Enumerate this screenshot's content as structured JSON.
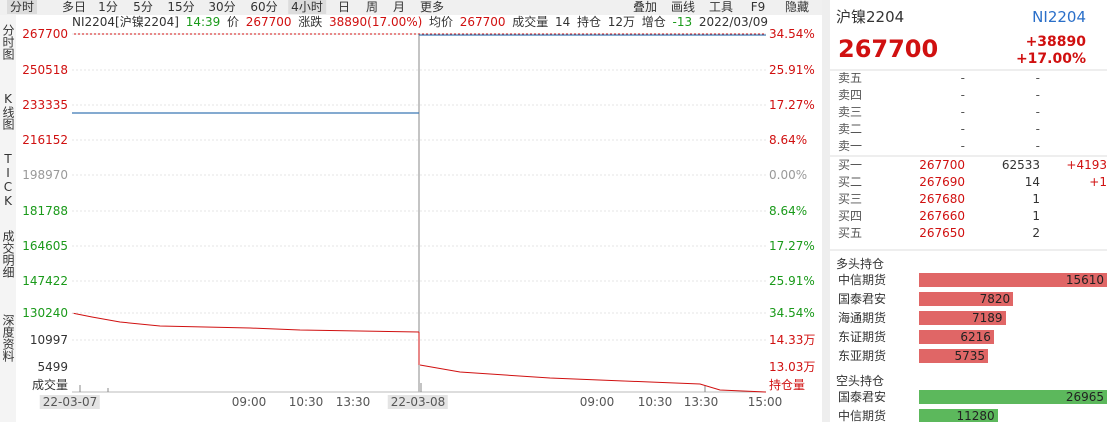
{
  "toolbar": {
    "tabs": [
      "分时",
      "多日",
      "1分",
      "5分",
      "15分",
      "30分",
      "60分",
      "4小时",
      "日",
      "周",
      "月",
      "更多"
    ],
    "tools": [
      "叠加",
      "画线",
      "工具",
      "F9",
      "隐藏"
    ]
  },
  "side_tabs": [
    "分时图",
    "K线图",
    "TICK",
    "成交明细",
    "深度资料"
  ],
  "info": [
    {
      "text": "NI2204[沪镍2204]",
      "color": "#333333"
    },
    {
      "text": "14:39",
      "color": "#1a9a1a"
    },
    {
      "text": "价",
      "color": "#333333"
    },
    {
      "text": "267700",
      "color": "#d01010"
    },
    {
      "text": "涨跌",
      "color": "#333333"
    },
    {
      "text": "38890(17.00%)",
      "color": "#d01010"
    },
    {
      "text": "均价",
      "color": "#333333"
    },
    {
      "text": "267700",
      "color": "#d01010"
    },
    {
      "text": "成交量",
      "color": "#333333"
    },
    {
      "text": "14",
      "color": "#333333"
    },
    {
      "text": "持仓",
      "color": "#333333"
    },
    {
      "text": "12万",
      "color": "#333333"
    },
    {
      "text": "增仓",
      "color": "#333333"
    },
    {
      "text": "-13",
      "color": "#1a9a1a"
    },
    {
      "text": "2022/03/09",
      "color": "#333333"
    }
  ],
  "left_axis": [
    {
      "text": "267700",
      "color": "#d01010"
    },
    {
      "text": "250518",
      "color": "#d01010"
    },
    {
      "text": "233335",
      "color": "#d01010"
    },
    {
      "text": "216152",
      "color": "#d01010"
    },
    {
      "text": "198970",
      "color": "#999999"
    },
    {
      "text": "181788",
      "color": "#1a9a1a"
    },
    {
      "text": "164605",
      "color": "#1a9a1a"
    },
    {
      "text": "147422",
      "color": "#1a9a1a"
    },
    {
      "text": "130240",
      "color": "#1a9a1a"
    },
    {
      "text": "10997",
      "color": "#333333"
    },
    {
      "text": "5499",
      "color": "#333333"
    },
    {
      "text": "成交量",
      "color": "#333333"
    }
  ],
  "right_axis": [
    {
      "text": "34.54%",
      "color": "#d01010"
    },
    {
      "text": "25.91%",
      "color": "#d01010"
    },
    {
      "text": "17.27%",
      "color": "#d01010"
    },
    {
      "text": "8.64%",
      "color": "#d01010"
    },
    {
      "text": "0.00%",
      "color": "#999999"
    },
    {
      "text": "8.64%",
      "color": "#1a9a1a"
    },
    {
      "text": "17.27%",
      "color": "#1a9a1a"
    },
    {
      "text": "25.91%",
      "color": "#1a9a1a"
    },
    {
      "text": "34.54%",
      "color": "#1a9a1a"
    },
    {
      "text": "14.33万",
      "color": "#d01010"
    },
    {
      "text": "13.03万",
      "color": "#d01010"
    },
    {
      "text": "持仓量",
      "color": "#d01010"
    }
  ],
  "x_axis": [
    "22-03-07",
    "09:00",
    "10:30",
    "13:30",
    "22-03-08",
    "09:00",
    "10:30",
    "13:30",
    "15:00"
  ],
  "quote": {
    "name": "沪镍2204",
    "code": "NI2204",
    "price": "267700",
    "change": "+38890",
    "change_pct": "+17.00%"
  },
  "order_book": [
    [
      "卖五",
      "-",
      "-",
      ""
    ],
    [
      "卖四",
      "-",
      "-",
      ""
    ],
    [
      "卖三",
      "-",
      "-",
      ""
    ],
    [
      "卖二",
      "-",
      "-",
      ""
    ],
    [
      "卖一",
      "-",
      "-",
      ""
    ],
    [
      "买一",
      "267700",
      "62533",
      "+4193"
    ],
    [
      "买二",
      "267690",
      "14",
      "+1"
    ],
    [
      "买三",
      "267680",
      "1",
      ""
    ],
    [
      "买四",
      "267660",
      "1",
      ""
    ],
    [
      "买五",
      "267650",
      "2",
      ""
    ]
  ],
  "long_positions": {
    "title": "多头持仓",
    "color": "#e06666",
    "rows": [
      {
        "name": "中信期货",
        "value": 15610
      },
      {
        "name": "国泰君安",
        "value": 7820
      },
      {
        "name": "海通期货",
        "value": 7189
      },
      {
        "name": "东证期货",
        "value": 6216
      },
      {
        "name": "东亚期货",
        "value": 5735
      }
    ]
  },
  "short_positions": {
    "title": "空头持仓",
    "color": "#5cb85c",
    "rows": [
      {
        "name": "国泰君安",
        "value": 26965
      },
      {
        "name": "中信期货",
        "value": 11280
      }
    ]
  }
}
